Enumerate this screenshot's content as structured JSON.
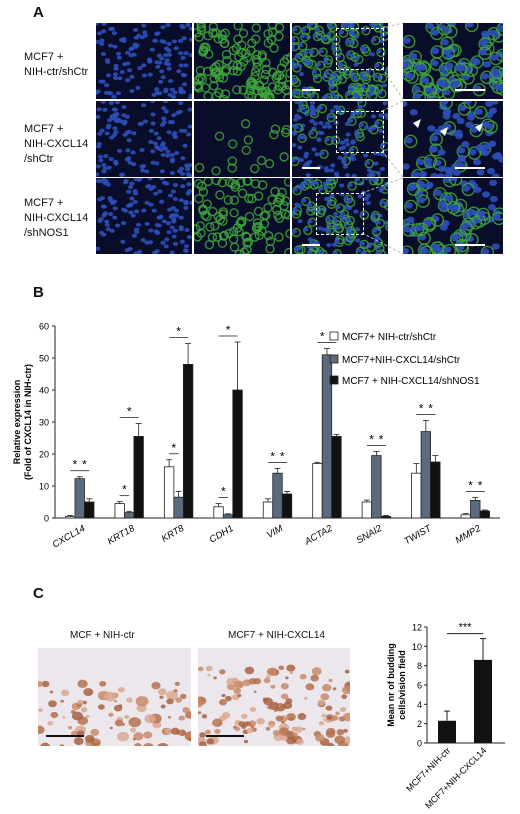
{
  "panel_a": {
    "letter": "A",
    "rows": [
      {
        "line1": "MCF7 +",
        "line2": "NIH-ctr/shCtr",
        "line3": ""
      },
      {
        "line1": "MCF7 +",
        "line2": "NIH-CXCL14",
        "line3": "/shCtr"
      },
      {
        "line1": "MCF7 +",
        "line2": "NIH-CXCL14",
        "line3": "/shNOS1"
      }
    ]
  },
  "panel_b": {
    "letter": "B"
  },
  "panel_c": {
    "letter": "C",
    "image_captions": [
      "MCF + NIH-ctr",
      "MCF7 + NIH-CXCL14"
    ]
  },
  "colors": {
    "nucleus_blue": "#2b4fb8",
    "membrane_green": "#3fa83a",
    "bar_white": "#ffffff",
    "bar_grey": "#5b6b7d",
    "bar_black": "#111111"
  },
  "chart_data": [
    {
      "type": "bar",
      "title": "",
      "ylabel_line1": "Relative expression",
      "ylabel_line2": "(Fold of CXCL14 in NIH-ctr)",
      "xlabel": "",
      "ylim": [
        0,
        60
      ],
      "yticks": [
        0,
        10,
        20,
        30,
        40,
        50,
        60
      ],
      "categories": [
        "CXCL14",
        "KRT18",
        "KRT8",
        "CDH1",
        "VIM",
        "ACTA2",
        "SNAI2",
        "TWIST",
        "MMP2"
      ],
      "series": [
        {
          "name": "MCF7+ NIH-ctr/shCtr",
          "color": "#ffffff",
          "values": [
            0.5,
            4.5,
            16,
            3.5,
            5,
            17,
            5,
            14,
            1
          ],
          "errors": [
            0.3,
            0.6,
            2.2,
            1.0,
            1.0,
            0.4,
            0.6,
            3.0,
            0.4
          ]
        },
        {
          "name": "MCF7+NIH-CXCL14/shCtr",
          "color": "#5b6b7d",
          "values": [
            12.3,
            1.7,
            6.5,
            1,
            14,
            51,
            19.5,
            27,
            5.5
          ],
          "errors": [
            0.6,
            0.4,
            1.8,
            0.3,
            1.5,
            2.0,
            1.3,
            3.5,
            0.9
          ]
        },
        {
          "name": "MCF7 + NIH-CXCL14/shNOS1",
          "color": "#111111",
          "values": [
            5,
            25.5,
            48,
            40,
            7.5,
            25.5,
            0.5,
            17.5,
            2.2
          ],
          "errors": [
            1.0,
            4.0,
            6.5,
            15.0,
            0.8,
            0.6,
            0.3,
            2.0,
            0.3
          ]
        }
      ],
      "significance": [
        {
          "category": "CXCL14",
          "label": "*",
          "pairs": [
            "1-2",
            "2-3"
          ]
        },
        {
          "category": "KRT18",
          "label": "*",
          "pairs": [
            "1-2",
            "1-3"
          ]
        },
        {
          "category": "KRT8",
          "label": "*",
          "pairs": [
            "1-2",
            "1-3"
          ]
        },
        {
          "category": "CDH1",
          "label": "*",
          "pairs": [
            "1-2",
            "1-3"
          ]
        },
        {
          "category": "VIM",
          "label": "*",
          "pairs": [
            "1-2",
            "2-3"
          ]
        },
        {
          "category": "ACTA2",
          "label": "*",
          "pairs": [
            "1-2",
            "2-3"
          ]
        },
        {
          "category": "SNAI2",
          "label": "*",
          "pairs": [
            "1-2",
            "2-3"
          ]
        },
        {
          "category": "TWIST",
          "label": "*",
          "pairs": [
            "1-2",
            "2-3"
          ]
        },
        {
          "category": "MMP2",
          "label": "*",
          "pairs": [
            "1-2",
            "2-3"
          ]
        }
      ],
      "legend_position": "top-right"
    },
    {
      "type": "bar",
      "title": "",
      "ylabel_line1": "Mean nr of budding",
      "ylabel_line2": "cells/vision field",
      "ylim": [
        0,
        12
      ],
      "yticks": [
        0,
        2,
        4,
        6,
        8,
        10,
        12
      ],
      "categories": [
        "MCF7+NIH-ctr",
        "MCF7+NIH-CXCL14"
      ],
      "values": [
        2.3,
        8.6
      ],
      "errors": [
        1.0,
        2.2
      ],
      "color": "#111111",
      "significance_label": "***"
    }
  ]
}
